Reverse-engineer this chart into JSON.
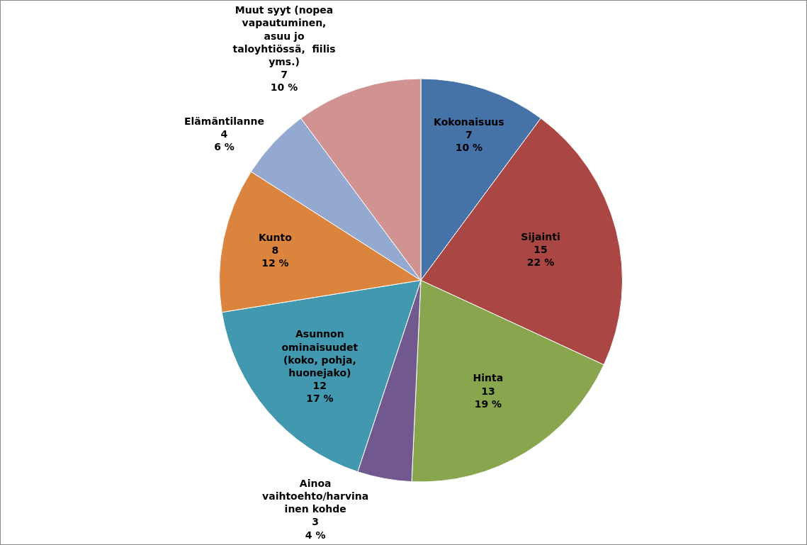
{
  "chart_data": {
    "type": "pie",
    "categories": [
      "Kokonaisuus",
      "Sijainti",
      "Hinta",
      "Ainoa\nvaihtoehto/harvina\ninen kohde",
      "Asunnon\nominaisuudet\n(koko, pohja,\nhuonejako)",
      "Kunto",
      "Elämäntilanne",
      "Muut syyt (nopea\nvapautuminen,\nasuu jo\ntaloyhtiössä,  fiilis\nyms.)"
    ],
    "values": [
      7,
      15,
      13,
      3,
      12,
      8,
      4,
      7
    ],
    "value_labels": [
      "7\n10 %",
      "15\n22 %",
      "13\n19 %",
      "3\n4 %",
      "12\n17 %",
      "8\n12 %",
      "4\n6 %",
      "7\n10 %"
    ],
    "colors": [
      "#4572a7",
      "#aa4643",
      "#89a54e",
      "#71588f",
      "#4198af",
      "#db843d",
      "#93a9cf",
      "#d19392"
    ],
    "legend": false
  }
}
